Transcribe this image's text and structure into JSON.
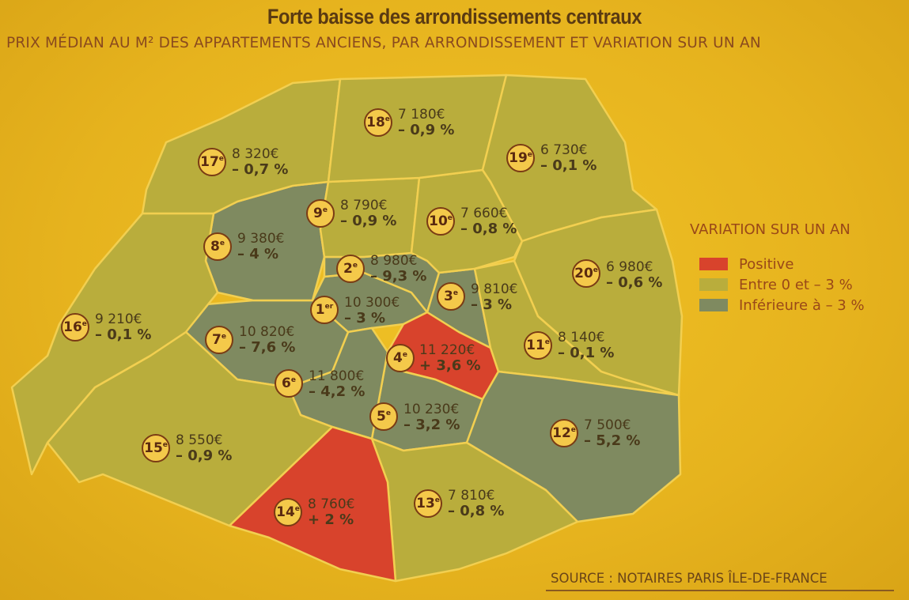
{
  "title": "Forte baisse des arrondissements centraux",
  "subtitle": "PRIX MÉDIAN AU M² DES APPARTEMENTS ANCIENS, PAR ARRONDISSEMENT ET VARIATION SUR UN AN",
  "legend": {
    "title": "VARIATION SUR UN AN",
    "items": [
      {
        "key": "positive",
        "label": "Positive",
        "color": "#d8432c"
      },
      {
        "key": "mid",
        "label": "Entre 0 et – 3 %",
        "color": "#b9ad3c"
      },
      {
        "key": "low",
        "label": "Inférieure à – 3 %",
        "color": "#7f8a60"
      }
    ]
  },
  "districts": [
    {
      "id": "1",
      "num": "1",
      "suffix": "er",
      "price": "10 300€",
      "variation": "– 3 %",
      "cat": "low"
    },
    {
      "id": "2",
      "num": "2",
      "suffix": "e",
      "price": "8 980€",
      "variation": "– 9,3 %",
      "cat": "low"
    },
    {
      "id": "3",
      "num": "3",
      "suffix": "e",
      "price": "9 810€",
      "variation": "– 3 %",
      "cat": "low"
    },
    {
      "id": "4",
      "num": "4",
      "suffix": "e",
      "price": "11 220€",
      "variation": "+ 3,6 %",
      "cat": "positive"
    },
    {
      "id": "5",
      "num": "5",
      "suffix": "e",
      "price": "10 230€",
      "variation": "– 3,2 %",
      "cat": "low"
    },
    {
      "id": "6",
      "num": "6",
      "suffix": "e",
      "price": "11 800€",
      "variation": "– 4,2 %",
      "cat": "low"
    },
    {
      "id": "7",
      "num": "7",
      "suffix": "e",
      "price": "10 820€",
      "variation": "– 7,6 %",
      "cat": "low"
    },
    {
      "id": "8",
      "num": "8",
      "suffix": "e",
      "price": "9 380€",
      "variation": "– 4 %",
      "cat": "low"
    },
    {
      "id": "9",
      "num": "9",
      "suffix": "e",
      "price": "8 790€",
      "variation": "– 0,9 %",
      "cat": "mid"
    },
    {
      "id": "10",
      "num": "10",
      "suffix": "e",
      "price": "7 660€",
      "variation": "– 0,8 %",
      "cat": "mid"
    },
    {
      "id": "11",
      "num": "11",
      "suffix": "e",
      "price": "8 140€",
      "variation": "– 0,1 %",
      "cat": "mid"
    },
    {
      "id": "12",
      "num": "12",
      "suffix": "e",
      "price": "7 500€",
      "variation": "– 5,2 %",
      "cat": "low"
    },
    {
      "id": "13",
      "num": "13",
      "suffix": "e",
      "price": "7 810€",
      "variation": "– 0,8 %",
      "cat": "mid"
    },
    {
      "id": "14",
      "num": "14",
      "suffix": "e",
      "price": "8 760€",
      "variation": "+ 2 %",
      "cat": "positive"
    },
    {
      "id": "15",
      "num": "15",
      "suffix": "e",
      "price": "8 550€",
      "variation": "– 0,9 %",
      "cat": "mid"
    },
    {
      "id": "16",
      "num": "16",
      "suffix": "e",
      "price": "9 210€",
      "variation": "– 0,1 %",
      "cat": "mid"
    },
    {
      "id": "17",
      "num": "17",
      "suffix": "e",
      "price": "8 320€",
      "variation": "– 0,7 %",
      "cat": "mid"
    },
    {
      "id": "18",
      "num": "18",
      "suffix": "e",
      "price": "7 180€",
      "variation": "– 0,9 %",
      "cat": "mid"
    },
    {
      "id": "19",
      "num": "19",
      "suffix": "e",
      "price": "6 730€",
      "variation": "– 0,1 %",
      "cat": "mid"
    },
    {
      "id": "20",
      "num": "20",
      "suffix": "e",
      "price": "6 980€",
      "variation": "– 0,6 %",
      "cat": "mid"
    }
  ],
  "source": "SOURCE : NOTAIRES PARIS ÎLE-DE-FRANCE"
}
